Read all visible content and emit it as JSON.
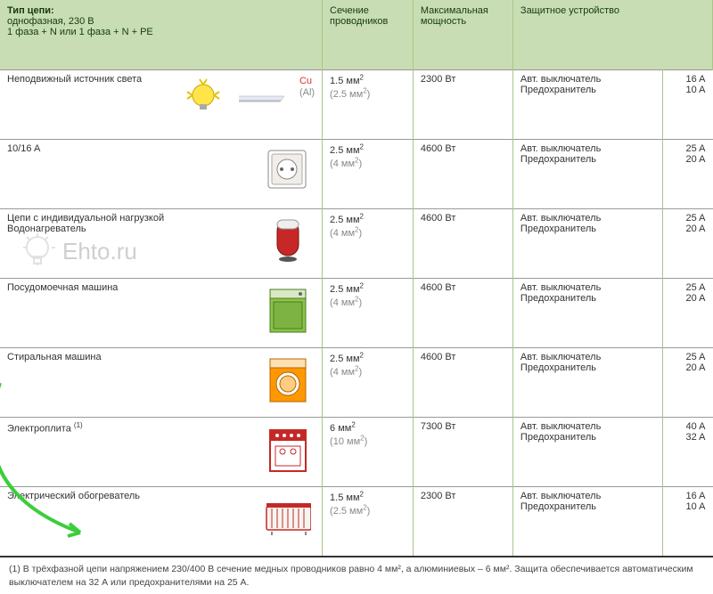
{
  "header": {
    "col1_line1": "Тип цепи:",
    "col1_line2": "однофазная, 230 В",
    "col1_line3": "1 фаза + N или 1 фаза + N + PE",
    "col2": "Сечение проводников",
    "col3": "Максимальная мощность",
    "col4": "Защитное устройство"
  },
  "conductor_labels": {
    "cu": "Cu",
    "al": "(Al)"
  },
  "device_labels": {
    "breaker": "Авт. выключатель",
    "fuse": "Предохранитель"
  },
  "rows": [
    {
      "name": "Неподвижный источник света",
      "section_cu": "1.5 мм",
      "section_al": "(2.5 мм",
      "sq": "2",
      "sq_close": ")",
      "power": "2300 Вт",
      "breaker": "16 A",
      "fuse": "10 A",
      "icons": [
        "bulb",
        "tube"
      ]
    },
    {
      "name": "10/16 A",
      "section_cu": "2.5 мм",
      "section_al": "(4 мм",
      "sq": "2",
      "sq_close": ")",
      "power": "4600 Вт",
      "breaker": "25 A",
      "fuse": "20 A",
      "icons": [
        "socket"
      ]
    },
    {
      "name": "Цепи с индивидуальной нагрузкой",
      "name2": "Водонагреватель",
      "section_cu": "2.5 мм",
      "section_al": "(4 мм",
      "sq": "2",
      "sq_close": ")",
      "power": "4600 Вт",
      "breaker": "25 A",
      "fuse": "20 A",
      "icons": [
        "waterheater"
      ]
    },
    {
      "name": "Посудомоечная машина",
      "section_cu": "2.5 мм",
      "section_al": "(4 мм",
      "sq": "2",
      "sq_close": ")",
      "power": "4600 Вт",
      "breaker": "25 A",
      "fuse": "20 A",
      "icons": [
        "dishwasher"
      ]
    },
    {
      "name": "Стиральная машина",
      "section_cu": "2.5 мм",
      "section_al": "(4 мм",
      "sq": "2",
      "sq_close": ")",
      "power": "4600 Вт",
      "breaker": "25 A",
      "fuse": "20 A",
      "icons": [
        "washer"
      ]
    },
    {
      "name": "Электроплита ",
      "sup": "(1)",
      "section_cu": "6 мм",
      "section_al": "(10 мм",
      "sq": "2",
      "sq_close": ")",
      "power": "7300 Вт",
      "breaker": "40 A",
      "fuse": "32 A",
      "icons": [
        "stove"
      ]
    },
    {
      "name": "Электрический обогреватель",
      "section_cu": "1.5 мм",
      "section_al": "(2.5 мм",
      "sq": "2",
      "sq_close": ")",
      "power": "2300 Вт",
      "breaker": "16 A",
      "fuse": "10 A",
      "icons": [
        "heater"
      ]
    }
  ],
  "footnote": "(1) В трёхфазной цепи напряжением 230/400 В сечение медных проводников равно 4 мм², а алюминиевых  – 6 мм². Защита обеспечивается автоматическим выключателем на 32 А или предохранителями на 25 А.",
  "watermark": "Ehto.ru",
  "colors": {
    "header_bg": "#c8ddb3",
    "border": "#a9c58a",
    "cu": "#d33",
    "al": "#888",
    "arrow": "#3bce3b"
  }
}
